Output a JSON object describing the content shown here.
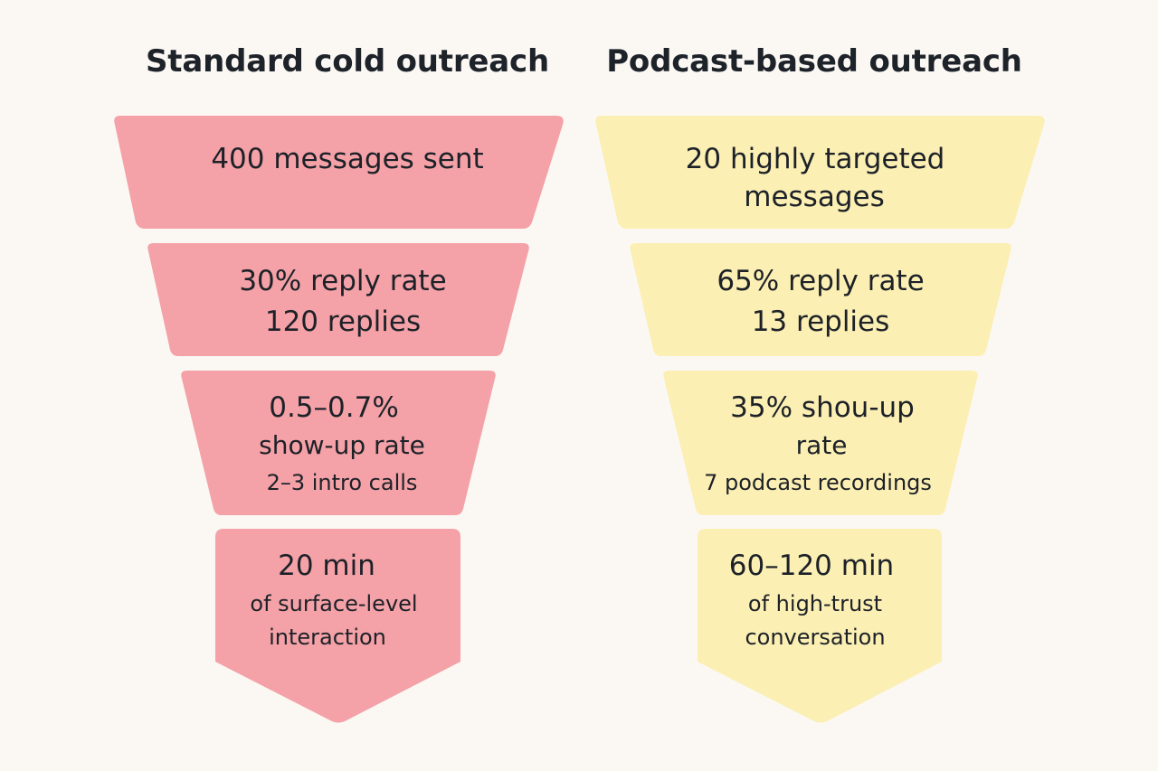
{
  "colors": {
    "background": "#fbf8f4",
    "standard_fill": "#f4a2a7",
    "podcast_fill": "#fbefb3",
    "text": "#1d2128"
  },
  "standard": {
    "title": "Standard cold outreach",
    "stage1": {
      "line1": "400 messages sent"
    },
    "stage2": {
      "line1": "30% reply rate",
      "line2": "120 replies"
    },
    "stage3": {
      "line1": "0.5–0.7%",
      "line2": "show-up rate",
      "line3": "2–3 intro calls"
    },
    "stage4": {
      "line1": "20 min",
      "line2": "of surface-level",
      "line3": "interaction"
    }
  },
  "podcast": {
    "title": "Podcast-based outreach",
    "stage1": {
      "line1": "20 highly targeted",
      "line2": "messages"
    },
    "stage2": {
      "line1": "65% reply rate",
      "line2": "13 replies"
    },
    "stage3": {
      "line1": "35% shou-up",
      "line2": "rate",
      "line3": "7 podcast recordings"
    },
    "stage4": {
      "line1": "60–120 min",
      "line2": "of high-trust",
      "line3": "conversation"
    }
  }
}
